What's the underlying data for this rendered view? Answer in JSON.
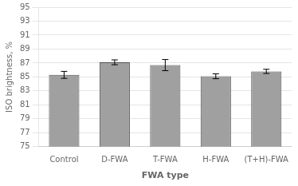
{
  "chart_data": {
    "type": "bar",
    "categories": [
      "Control",
      "D-FWA",
      "T-FWA",
      "H-FWA",
      "(T+H)-FWA"
    ],
    "values": [
      85.3,
      87.1,
      86.7,
      85.1,
      85.8
    ],
    "errors": [
      0.5,
      0.35,
      0.8,
      0.35,
      0.3
    ],
    "color": "#a0a0a0",
    "xlabel": "FWA type",
    "ylabel": "ISO brightness, %",
    "ylim": [
      75,
      95
    ],
    "yticks": [
      75,
      77,
      79,
      81,
      83,
      85,
      87,
      89,
      91,
      93,
      95
    ],
    "grid": true
  }
}
